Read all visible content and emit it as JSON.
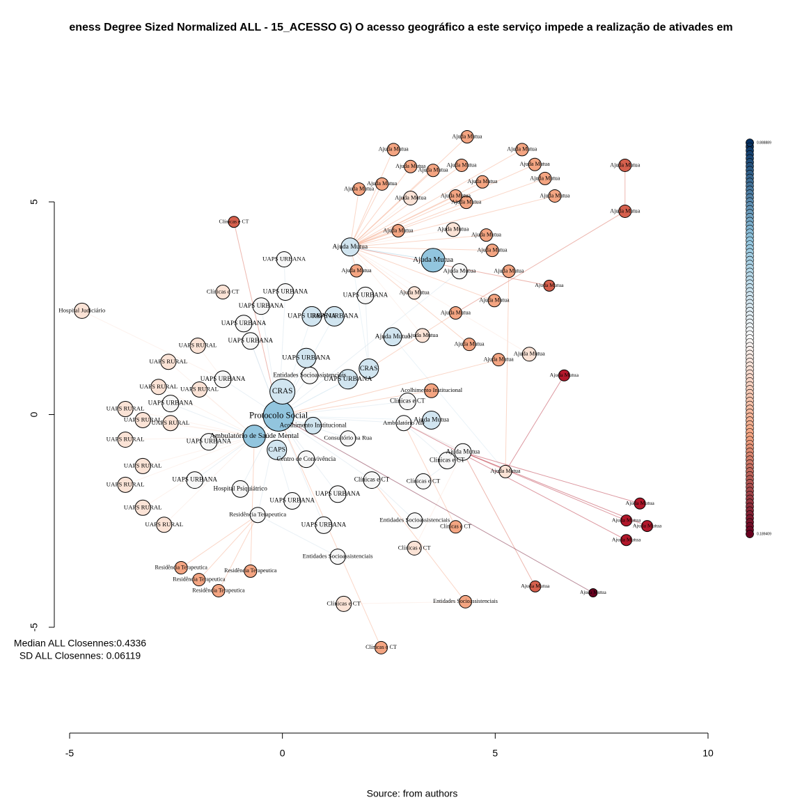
{
  "chart_data": {
    "type": "network",
    "title": "eness Degree Sized Normalized ALL - 15_ACESSO G) O acesso geográfico a este serviço impede a realização de ativades em",
    "annotations": [
      "Median ALL Closennes:0.4336",
      "SD ALL Closennes: 0.06119"
    ],
    "caption": "Source: from authors",
    "xlim": [
      -5,
      10
    ],
    "xticks": [
      -5,
      0,
      5,
      10
    ],
    "ylim": [
      -5,
      5
    ],
    "yticks": [
      -5,
      0,
      5
    ],
    "legend_labels": [
      {
        "value": 0.888889,
        "label": "0.888889"
      },
      {
        "value": 0.189409,
        "label": "0.189409"
      }
    ],
    "nodes": [
      {
        "label": "Protocolo Social",
        "x": -0.09,
        "y": -0.03,
        "size": 22,
        "color": "#92c5de"
      },
      {
        "label": "CRAS",
        "x": 0,
        "y": 0.54,
        "size": 18,
        "color": "#d1e5f0"
      },
      {
        "label": "CAPS",
        "x": -0.13,
        "y": -0.83,
        "size": 14,
        "color": "#d1e5f0"
      },
      {
        "label": "Ambulatório de Saúde Mental",
        "x": -0.66,
        "y": -0.51,
        "size": 16,
        "color": "#92c5de"
      },
      {
        "label": "Ambulatório AD",
        "x": 2.85,
        "y": -0.2,
        "size": 11,
        "color": "#f7f7f7"
      },
      {
        "label": "Entidades Socioassistenciais",
        "x": 3.11,
        "y": -2.49,
        "size": 11,
        "color": "#f7f7f7"
      },
      {
        "label": "UAPS URBANA",
        "x": 0.97,
        "y": -2.6,
        "size": 12,
        "color": "#f7f7f7"
      },
      {
        "label": "UAPS URBANA",
        "x": 1.3,
        "y": -1.87,
        "size": 12,
        "color": "#f7f7f7"
      },
      {
        "label": "Residência Terapeutica",
        "x": -0.58,
        "y": -2.36,
        "size": 11,
        "color": "#f7f7f7"
      },
      {
        "label": "Clínicas e CT",
        "x": 2.1,
        "y": -1.54,
        "size": 12,
        "color": "#f7f7f7"
      },
      {
        "label": "Clínicas e CT",
        "x": 2.94,
        "y": 0.31,
        "size": 12,
        "color": "#f7f7f7"
      },
      {
        "label": "CRAS",
        "x": 2.03,
        "y": 1.08,
        "size": 14,
        "color": "#d1e5f0"
      },
      {
        "label": "Entidades Socioassistenciais",
        "x": 0.64,
        "y": 0.92,
        "size": 12,
        "color": "#f7f7f7"
      },
      {
        "label": "Hospital Psiquiátrico",
        "x": -0.99,
        "y": -1.75,
        "size": 12,
        "color": "#f7f7f7"
      },
      {
        "label": "Acolhimento Institucional",
        "x": 0.72,
        "y": -0.26,
        "size": 12,
        "color": "#d1e5f0"
      },
      {
        "label": "Consultório na Rua",
        "x": 1.54,
        "y": -0.56,
        "size": 11,
        "color": "#f7f7f7"
      },
      {
        "label": "UAPS URBANA",
        "x": -2.06,
        "y": -1.54,
        "size": 12,
        "color": "#f7f7f7"
      },
      {
        "label": "UAPS URBANA",
        "x": -2.63,
        "y": 0.26,
        "size": 12,
        "color": "#f7f7f7"
      },
      {
        "label": "UAPS URBANA",
        "x": -1.4,
        "y": 0.83,
        "size": 12,
        "color": "#f7f7f7"
      },
      {
        "label": "UAPS URBANA",
        "x": -0.5,
        "y": 2.55,
        "size": 12,
        "color": "#f7f7f7"
      },
      {
        "label": "UAPS URBANA",
        "x": -0.91,
        "y": 2.14,
        "size": 12,
        "color": "#f7f7f7"
      },
      {
        "label": "UAPS URBANA",
        "x": 0.07,
        "y": 2.88,
        "size": 12,
        "color": "#f7f7f7"
      },
      {
        "label": "UAPS URBANA",
        "x": 0.56,
        "y": 1.33,
        "size": 14,
        "color": "#d1e5f0"
      },
      {
        "label": "UAPS URBANA",
        "x": 1.54,
        "y": 0.83,
        "size": 14,
        "color": "#d1e5f0"
      },
      {
        "label": "UAPS URBANA",
        "x": -0.75,
        "y": 1.73,
        "size": 12,
        "color": "#f7f7f7"
      },
      {
        "label": "UAPS URBANA",
        "x": -1.73,
        "y": -0.64,
        "size": 12,
        "color": "#f7f7f7"
      },
      {
        "label": "UAPS URBANA",
        "x": 0.23,
        "y": -2.03,
        "size": 12,
        "color": "#f7f7f7"
      },
      {
        "label": "Centro de Convivência",
        "x": 0.56,
        "y": -1.05,
        "size": 12,
        "color": "#f7f7f7"
      },
      {
        "label": "UAPS URBANA",
        "x": 0.69,
        "y": 2.31,
        "size": 14,
        "color": "#d1e5f0"
      },
      {
        "label": "UAPS URBANA",
        "x": 1.22,
        "y": 2.31,
        "size": 14,
        "color": "#d1e5f0"
      },
      {
        "label": "UAPS URBANA",
        "x": 1.95,
        "y": 2.8,
        "size": 12,
        "color": "#f7f7f7"
      },
      {
        "label": "UAPS URBANA",
        "x": 0.04,
        "y": 3.65,
        "size": 11,
        "color": "#f7f7f7"
      },
      {
        "label": "UAPS RURAL",
        "x": -3.69,
        "y": 0.13,
        "size": 11,
        "color": "#fbe3d6"
      },
      {
        "label": "UAPS RURAL",
        "x": -3.28,
        "y": -0.13,
        "size": 11,
        "color": "#fbe3d6"
      },
      {
        "label": "UAPS RURAL",
        "x": -2.63,
        "y": -0.2,
        "size": 11,
        "color": "#fbe3d6"
      },
      {
        "label": "UAPS RURAL",
        "x": -3.69,
        "y": -0.59,
        "size": 11,
        "color": "#fbe3d6"
      },
      {
        "label": "UAPS RURAL",
        "x": -3.28,
        "y": -1.21,
        "size": 11,
        "color": "#fbe3d6"
      },
      {
        "label": "UAPS RURAL",
        "x": -3.69,
        "y": -1.65,
        "size": 11,
        "color": "#fbe3d6"
      },
      {
        "label": "UAPS RURAL",
        "x": -3.28,
        "y": -2.19,
        "size": 11,
        "color": "#fbe3d6"
      },
      {
        "label": "UAPS RURAL",
        "x": -2.78,
        "y": -2.59,
        "size": 11,
        "color": "#fbe3d6"
      },
      {
        "label": "UAPS RURAL",
        "x": -2.91,
        "y": 0.65,
        "size": 11,
        "color": "#fbe3d6"
      },
      {
        "label": "UAPS RURAL",
        "x": -1.99,
        "y": 1.62,
        "size": 11,
        "color": "#fbe3d6"
      },
      {
        "label": "UAPS RURAL",
        "x": -2.68,
        "y": 1.24,
        "size": 11,
        "color": "#fbe3d6"
      },
      {
        "label": "UAPS RURAL",
        "x": -1.95,
        "y": 0.59,
        "size": 11,
        "color": "#fbe3d6"
      },
      {
        "label": "Ajuda Mutua",
        "x": 4.34,
        "y": 6.53,
        "size": 9,
        "color": "#f4a582"
      },
      {
        "label": "Ajuda Mutua",
        "x": 2.61,
        "y": 6.23,
        "size": 9,
        "color": "#f4a582"
      },
      {
        "label": "Ajuda Mutua",
        "x": 5.63,
        "y": 6.23,
        "size": 9,
        "color": "#f4a582"
      },
      {
        "label": "Ajuda Mutua",
        "x": 3.01,
        "y": 5.83,
        "size": 9,
        "color": "#f4a582"
      },
      {
        "label": "Ajuda Mutua",
        "x": 3.54,
        "y": 5.74,
        "size": 9,
        "color": "#f4a582"
      },
      {
        "label": "Ajuda Mutua",
        "x": 4.21,
        "y": 5.86,
        "size": 9,
        "color": "#f4a582"
      },
      {
        "label": "Ajuda Mutua",
        "x": 5.93,
        "y": 5.88,
        "size": 9,
        "color": "#f4a582"
      },
      {
        "label": "Ajuda Mutua",
        "x": 2.34,
        "y": 5.42,
        "size": 9,
        "color": "#f4a582"
      },
      {
        "label": "Ajuda Mutua",
        "x": 1.8,
        "y": 5.3,
        "size": 9,
        "color": "#f4a582"
      },
      {
        "label": "Ajuda Mutua",
        "x": 4.7,
        "y": 5.47,
        "size": 9,
        "color": "#f4a582"
      },
      {
        "label": "Ajuda Mutua",
        "x": 6.17,
        "y": 5.55,
        "size": 9,
        "color": "#f4a582"
      },
      {
        "label": "Ajuda Mutua",
        "x": 6.4,
        "y": 5.14,
        "size": 9,
        "color": "#f4a582"
      },
      {
        "label": "Ajuda Mutua",
        "x": 3.01,
        "y": 5.09,
        "size": 10,
        "color": "#fbe3d6"
      },
      {
        "label": "Ajuda Mutua",
        "x": 4.07,
        "y": 5.14,
        "size": 9,
        "color": "#f4a582"
      },
      {
        "label": "Ajuda Mutua",
        "x": 4.32,
        "y": 4.99,
        "size": 9,
        "color": "#f4a582"
      },
      {
        "label": "Ajuda Mutua",
        "x": 8.05,
        "y": 5.86,
        "size": 9,
        "color": "#d6604d"
      },
      {
        "label": "Ajuda Mutua",
        "x": 8.05,
        "y": 4.78,
        "size": 9,
        "color": "#d6604d"
      },
      {
        "label": "Ajuda Mutua",
        "x": 2.72,
        "y": 4.32,
        "size": 9,
        "color": "#f4a582"
      },
      {
        "label": "Ajuda Mutua",
        "x": 4.01,
        "y": 4.35,
        "size": 10,
        "color": "#fbe3d6"
      },
      {
        "label": "Ajuda Mutua",
        "x": 4.79,
        "y": 4.22,
        "size": 9,
        "color": "#f4a582"
      },
      {
        "label": "Ajuda Mutua",
        "x": 4.93,
        "y": 3.86,
        "size": 9,
        "color": "#f4a582"
      },
      {
        "label": "Ajuda Mutua",
        "x": 1.59,
        "y": 3.94,
        "size": 13,
        "color": "#d1e5f0"
      },
      {
        "label": "Ajuda Mutua",
        "x": 3.54,
        "y": 3.63,
        "size": 17,
        "color": "#92c5de"
      },
      {
        "label": "Ajuda Mutua",
        "x": 4.16,
        "y": 3.37,
        "size": 11,
        "color": "#f7f7f7"
      },
      {
        "label": "Ajuda Mutua",
        "x": 1.74,
        "y": 3.38,
        "size": 9,
        "color": "#f4a582"
      },
      {
        "label": "Ajuda Mutua",
        "x": 5.32,
        "y": 3.37,
        "size": 9,
        "color": "#f4a582"
      },
      {
        "label": "Ajuda Mutua",
        "x": 6.27,
        "y": 3.03,
        "size": 8,
        "color": "#d6604d"
      },
      {
        "label": "Ajuda Mutua",
        "x": 3.1,
        "y": 2.86,
        "size": 9,
        "color": "#fbe3d6"
      },
      {
        "label": "Ajuda Mutua",
        "x": 4.98,
        "y": 2.68,
        "size": 9,
        "color": "#f4a582"
      },
      {
        "label": "Ajuda Mutua",
        "x": 4.07,
        "y": 2.39,
        "size": 9,
        "color": "#f4a582"
      },
      {
        "label": "Ajuda Mutua",
        "x": 3.29,
        "y": 1.86,
        "size": 10,
        "color": "#fbe3d6"
      },
      {
        "label": "Ajuda Mutua",
        "x": 2.59,
        "y": 1.83,
        "size": 13,
        "color": "#d1e5f0"
      },
      {
        "label": "Ajuda Mutua",
        "x": 4.39,
        "y": 1.65,
        "size": 9,
        "color": "#f4a582"
      },
      {
        "label": "Ajuda Mutua",
        "x": 5.8,
        "y": 1.42,
        "size": 10,
        "color": "#fbe3d6"
      },
      {
        "label": "Ajuda Mutua",
        "x": 5.08,
        "y": 1.29,
        "size": 9,
        "color": "#f4a582"
      },
      {
        "label": "Ajuda Mutua",
        "x": 6.62,
        "y": 0.92,
        "size": 8,
        "color": "#b2182b"
      },
      {
        "label": "Acolhimento Institucional",
        "x": 3.5,
        "y": 0.56,
        "size": 10,
        "color": "#f4a582"
      },
      {
        "label": "Ajuda Mutua",
        "x": 3.5,
        "y": -0.13,
        "size": 13,
        "color": "#d1e5f0"
      },
      {
        "label": "Ajuda Mutua",
        "x": 4.24,
        "y": -0.88,
        "size": 12,
        "color": "#f7f7f7"
      },
      {
        "label": "Ajuda Mutua",
        "x": 5.24,
        "y": -1.34,
        "size": 9,
        "color": "#fbe3d6"
      },
      {
        "label": "Clínicas e CT",
        "x": 3.87,
        "y": -1.08,
        "size": 12,
        "color": "#f7f7f7"
      },
      {
        "label": "Clínicas e CT",
        "x": 3.31,
        "y": -1.57,
        "size": 11,
        "color": "#f7f7f7"
      },
      {
        "label": "Ajuda Mutua",
        "x": 8.4,
        "y": -2.09,
        "size": 8,
        "color": "#b2182b"
      },
      {
        "label": "Ajuda Mutua",
        "x": 8.08,
        "y": -2.49,
        "size": 8,
        "color": "#b2182b"
      },
      {
        "label": "Ajuda Mutua",
        "x": 8.57,
        "y": -2.62,
        "size": 8,
        "color": "#b2182b"
      },
      {
        "label": "Ajuda Mutua",
        "x": 8.08,
        "y": -2.95,
        "size": 8,
        "color": "#b2182b"
      },
      {
        "label": "Clínicas e CT",
        "x": 4.07,
        "y": -2.64,
        "size": 9,
        "color": "#f4a582"
      },
      {
        "label": "Clínicas e CT",
        "x": 3.1,
        "y": -3.14,
        "size": 10,
        "color": "#fbe3d6"
      },
      {
        "label": "Ajuda Mutua",
        "x": 5.94,
        "y": -4.04,
        "size": 8,
        "color": "#d6604d"
      },
      {
        "label": "Ajuda Mutua",
        "x": 7.3,
        "y": -4.19,
        "size": 6,
        "color": "#67001f"
      },
      {
        "label": "Entidades Socioassistenciais",
        "x": 4.3,
        "y": -4.4,
        "size": 9,
        "color": "#f4a582"
      },
      {
        "label": "Clínicas e CT",
        "x": 1.44,
        "y": -4.45,
        "size": 11,
        "color": "#fbe3d6"
      },
      {
        "label": "Clínicas e CT",
        "x": 2.32,
        "y": -5.48,
        "size": 9,
        "color": "#f4a582"
      },
      {
        "label": "Entidades Socioassistenciais",
        "x": 1.3,
        "y": -3.34,
        "size": 11,
        "color": "#f7f7f7"
      },
      {
        "label": "Residência Terapeutica",
        "x": -2.38,
        "y": -3.6,
        "size": 9,
        "color": "#f4a582"
      },
      {
        "label": "Residência Terapeutica",
        "x": -1.96,
        "y": -3.88,
        "size": 9,
        "color": "#f4a582"
      },
      {
        "label": "Residência Terapeutica",
        "x": -1.5,
        "y": -4.14,
        "size": 9,
        "color": "#f4a582"
      },
      {
        "label": "Residência Terapeutica",
        "x": -0.75,
        "y": -3.68,
        "size": 9,
        "color": "#f4a582"
      },
      {
        "label": "Hospital Judiciário",
        "x": -4.71,
        "y": 2.44,
        "size": 11,
        "color": "#fbe3d6"
      },
      {
        "label": "Clínicas e CT",
        "x": -1.14,
        "y": 4.53,
        "size": 8,
        "color": "#d6604d"
      },
      {
        "label": "Clínicas e CT",
        "x": -1.4,
        "y": 2.88,
        "size": 10,
        "color": "#fbe3d6"
      }
    ],
    "edges": [
      [
        1,
        0
      ],
      [
        2,
        0
      ],
      [
        3,
        0
      ],
      [
        4,
        0
      ],
      [
        5,
        9
      ],
      [
        6,
        0
      ],
      [
        7,
        0
      ],
      [
        8,
        0
      ],
      [
        9,
        0
      ],
      [
        10,
        0
      ],
      [
        11,
        0
      ],
      [
        12,
        0
      ],
      [
        13,
        0
      ],
      [
        14,
        0
      ],
      [
        15,
        0
      ],
      [
        16,
        3
      ],
      [
        17,
        3
      ],
      [
        18,
        0
      ],
      [
        19,
        0
      ],
      [
        20,
        0
      ],
      [
        21,
        0
      ],
      [
        22,
        0
      ],
      [
        23,
        0
      ],
      [
        24,
        0
      ],
      [
        25,
        3
      ],
      [
        26,
        2
      ],
      [
        27,
        0
      ],
      [
        28,
        0
      ],
      [
        29,
        0
      ],
      [
        30,
        11
      ],
      [
        31,
        21
      ],
      [
        32,
        3
      ],
      [
        33,
        3
      ],
      [
        34,
        3
      ],
      [
        35,
        3
      ],
      [
        36,
        3
      ],
      [
        37,
        3
      ],
      [
        38,
        3
      ],
      [
        39,
        3
      ],
      [
        40,
        3
      ],
      [
        41,
        18
      ],
      [
        42,
        3
      ],
      [
        43,
        3
      ],
      [
        44,
        65
      ],
      [
        45,
        65
      ],
      [
        46,
        65
      ],
      [
        47,
        65
      ],
      [
        48,
        65
      ],
      [
        49,
        65
      ],
      [
        50,
        65
      ],
      [
        51,
        65
      ],
      [
        52,
        65
      ],
      [
        53,
        65
      ],
      [
        54,
        65
      ],
      [
        55,
        65
      ],
      [
        56,
        65
      ],
      [
        57,
        65
      ],
      [
        58,
        65
      ],
      [
        59,
        60
      ],
      [
        60,
        73
      ],
      [
        61,
        65
      ],
      [
        62,
        65
      ],
      [
        63,
        65
      ],
      [
        64,
        65
      ],
      [
        65,
        11
      ],
      [
        66,
        65
      ],
      [
        67,
        0
      ],
      [
        68,
        65
      ],
      [
        69,
        83
      ],
      [
        70,
        65
      ],
      [
        71,
        65
      ],
      [
        72,
        65
      ],
      [
        73,
        11
      ],
      [
        74,
        65
      ],
      [
        75,
        83
      ],
      [
        76,
        65
      ],
      [
        77,
        65
      ],
      [
        78,
        0
      ],
      [
        79,
        83
      ],
      [
        80,
        0
      ],
      [
        81,
        0
      ],
      [
        82,
        4
      ],
      [
        83,
        4
      ],
      [
        84,
        4
      ],
      [
        85,
        82
      ],
      [
        86,
        82
      ],
      [
        87,
        82
      ],
      [
        88,
        82
      ],
      [
        89,
        4
      ],
      [
        90,
        4
      ],
      [
        91,
        82
      ],
      [
        92,
        82
      ],
      [
        93,
        0
      ],
      [
        94,
        9
      ],
      [
        95,
        94
      ],
      [
        96,
        0
      ],
      [
        97,
        8
      ],
      [
        98,
        8
      ],
      [
        99,
        8
      ],
      [
        100,
        8
      ],
      [
        101,
        3
      ],
      [
        102,
        18
      ],
      [
        103,
        0
      ]
    ]
  }
}
